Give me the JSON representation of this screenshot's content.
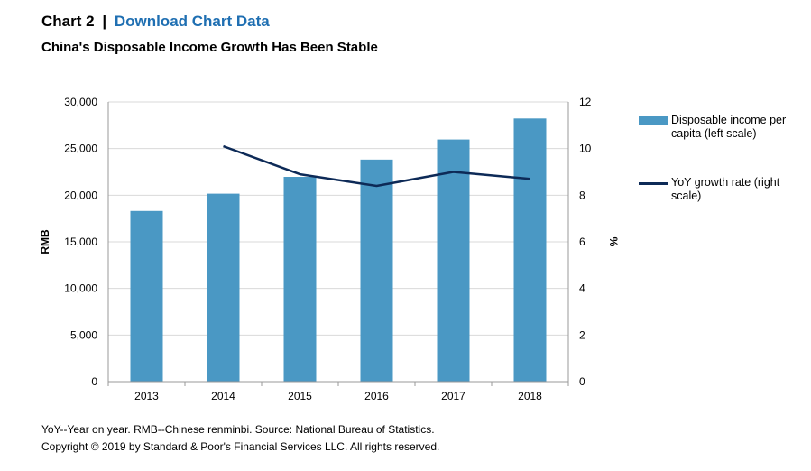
{
  "header": {
    "chart_number": "Chart 2",
    "separator": "|",
    "download_link": "Download Chart Data"
  },
  "subtitle": "China's Disposable Income Growth Has Been Stable",
  "chart_data": {
    "type": "bar",
    "title": "China's Disposable Income Growth Has Been Stable",
    "categories": [
      "2013",
      "2014",
      "2015",
      "2016",
      "2017",
      "2018"
    ],
    "series": [
      {
        "name": "Disposable income per capita (left scale)",
        "type": "bar",
        "axis": "left",
        "color": "#4a98c4",
        "values": [
          18311,
          20167,
          21966,
          23821,
          25974,
          28228
        ]
      },
      {
        "name": "YoY growth rate (right scale)",
        "type": "line",
        "axis": "right",
        "color": "#0d2a57",
        "values": [
          null,
          10.1,
          8.9,
          8.4,
          9.0,
          8.7
        ]
      }
    ],
    "ylabel_left": "RMB",
    "ylabel_right": "%",
    "ylim_left": [
      0,
      30000
    ],
    "ylim_right": [
      0,
      12
    ],
    "yticks_left": [
      "0",
      "5,000",
      "10,000",
      "15,000",
      "20,000",
      "25,000",
      "30,000"
    ],
    "yticks_right": [
      "0",
      "2",
      "4",
      "6",
      "8",
      "10",
      "12"
    ],
    "grid": true,
    "legend_position": "right"
  },
  "legend": {
    "bar_label": "Disposable income per capita (left scale)",
    "line_label": "YoY growth rate (right scale)"
  },
  "footnotes": {
    "source": "YoY--Year on year. RMB--Chinese renminbi. Source: National Bureau of Statistics.",
    "copyright": "Copyright © 2019 by Standard & Poor's Financial Services LLC. All rights reserved."
  }
}
